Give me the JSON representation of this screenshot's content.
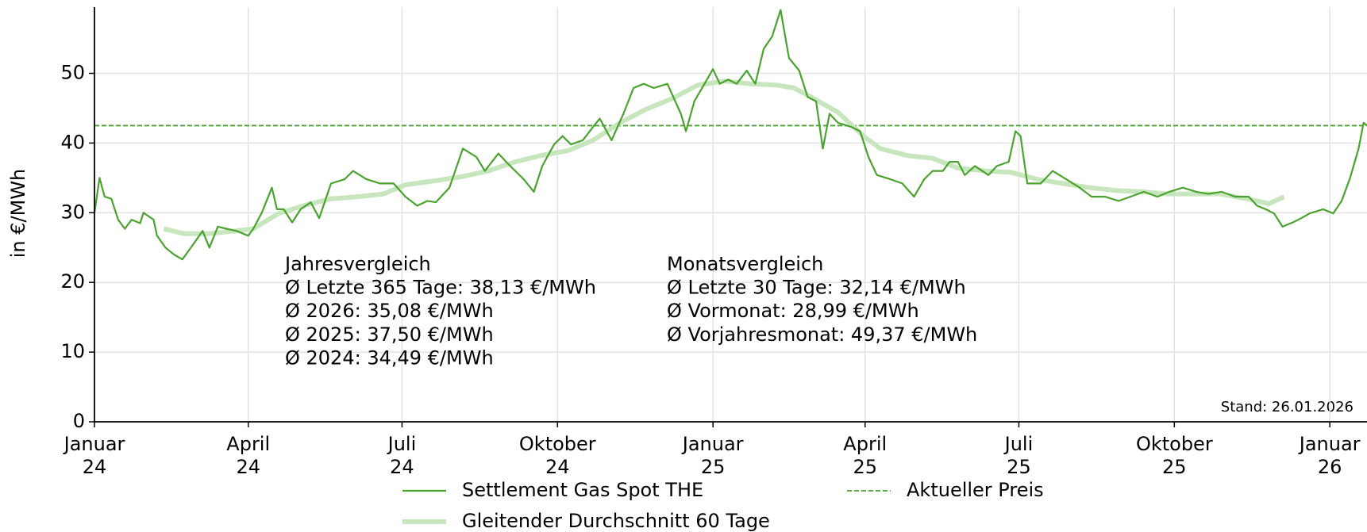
{
  "chart_data": {
    "type": "line",
    "y_label": "in €/MWh",
    "xlim": [
      "2024-01-01",
      "2026-01-23"
    ],
    "xticks": [
      {
        "value": "2024-01-01",
        "label": "Januar\n24"
      },
      {
        "value": "2024-04-01",
        "label": "April\n24"
      },
      {
        "value": "2024-07-01",
        "label": "Juli\n24"
      },
      {
        "value": "2024-10-01",
        "label": "Oktober\n24"
      },
      {
        "value": "2025-01-01",
        "label": "Januar\n25"
      },
      {
        "value": "2025-04-01",
        "label": "April\n25"
      },
      {
        "value": "2025-07-01",
        "label": "Juli\n25"
      },
      {
        "value": "2025-10-01",
        "label": "Oktober\n25"
      },
      {
        "value": "2026-01-01",
        "label": "Januar\n26"
      }
    ],
    "ylim": [
      0,
      59.5
    ],
    "yticks": [
      0,
      10,
      20,
      30,
      40,
      50
    ],
    "grid": true,
    "series": [
      {
        "name": "Settlement Gas Spot THE",
        "color": "#4ba32f",
        "x": [
          "2024-01-01",
          "2024-01-04",
          "2024-01-07",
          "2024-01-11",
          "2024-01-15",
          "2024-01-19",
          "2024-01-23",
          "2024-01-28",
          "2024-01-30",
          "2024-02-05",
          "2024-02-07",
          "2024-02-12",
          "2024-02-17",
          "2024-02-22",
          "2024-02-25",
          "2024-03-01",
          "2024-03-05",
          "2024-03-09",
          "2024-03-14",
          "2024-03-19",
          "2024-03-25",
          "2024-04-01",
          "2024-04-04",
          "2024-04-09",
          "2024-04-15",
          "2024-04-18",
          "2024-04-22",
          "2024-04-27",
          "2024-05-02",
          "2024-05-08",
          "2024-05-13",
          "2024-05-20",
          "2024-05-28",
          "2024-06-02",
          "2024-06-10",
          "2024-06-18",
          "2024-06-26",
          "2024-07-03",
          "2024-07-10",
          "2024-07-16",
          "2024-07-21",
          "2024-07-29",
          "2024-08-06",
          "2024-08-14",
          "2024-08-19",
          "2024-08-27",
          "2024-09-01",
          "2024-09-06",
          "2024-09-11",
          "2024-09-17",
          "2024-09-22",
          "2024-09-29",
          "2024-10-04",
          "2024-10-09",
          "2024-10-16",
          "2024-10-22",
          "2024-10-26",
          "2024-11-02",
          "2024-11-09",
          "2024-11-15",
          "2024-11-21",
          "2024-11-27",
          "2024-12-05",
          "2024-12-13",
          "2024-12-16",
          "2024-12-21",
          "2024-12-27",
          "2025-01-01",
          "2025-01-05",
          "2025-01-10",
          "2025-01-15",
          "2025-01-21",
          "2025-01-26",
          "2025-01-31",
          "2025-02-05",
          "2025-02-10",
          "2025-02-15",
          "2025-02-21",
          "2025-02-26",
          "2025-03-03",
          "2025-03-07",
          "2025-03-11",
          "2025-03-16",
          "2025-03-24",
          "2025-03-29",
          "2025-04-03",
          "2025-04-08",
          "2025-04-16",
          "2025-04-23",
          "2025-04-30",
          "2025-05-06",
          "2025-05-11",
          "2025-05-17",
          "2025-05-21",
          "2025-05-26",
          "2025-05-30",
          "2025-06-05",
          "2025-06-13",
          "2025-06-18",
          "2025-06-25",
          "2025-06-29",
          "2025-07-02",
          "2025-07-06",
          "2025-07-14",
          "2025-07-21",
          "2025-07-29",
          "2025-08-06",
          "2025-08-13",
          "2025-08-21",
          "2025-08-29",
          "2025-09-05",
          "2025-09-13",
          "2025-09-21",
          "2025-09-28",
          "2025-10-06",
          "2025-10-14",
          "2025-10-21",
          "2025-10-29",
          "2025-11-06",
          "2025-11-14",
          "2025-11-19",
          "2025-11-24",
          "2025-11-29",
          "2025-12-04",
          "2025-12-10",
          "2025-12-15",
          "2025-12-20",
          "2025-12-28",
          "2026-01-03",
          "2026-01-08",
          "2026-01-13",
          "2026-01-18",
          "2026-01-21",
          "2026-01-23"
        ],
        "values": [
          30,
          35,
          32.3,
          32,
          29,
          27.7,
          29,
          28.5,
          30,
          29,
          26.7,
          25,
          24,
          23.3,
          24.3,
          26,
          27.4,
          25,
          28,
          27.7,
          27.4,
          26.7,
          27.7,
          30,
          33.6,
          30.5,
          30.5,
          28.6,
          30.5,
          31.5,
          29.2,
          34.2,
          34.8,
          36,
          34.8,
          34.2,
          34.2,
          32.3,
          31,
          31.7,
          31.5,
          33.6,
          39.2,
          38,
          36,
          38.5,
          37.2,
          36,
          34.8,
          33,
          36.7,
          39.8,
          41,
          39.8,
          40.4,
          42.3,
          43.5,
          40.4,
          44.2,
          47.9,
          48.5,
          47.9,
          48.5,
          44.2,
          41.7,
          46,
          48.5,
          50.6,
          48.5,
          49.1,
          48.5,
          50.4,
          48.5,
          53.5,
          55.3,
          59.1,
          52.2,
          50.4,
          46.6,
          46,
          39.2,
          44.2,
          42.9,
          42.3,
          41.7,
          38,
          35.4,
          34.8,
          34.2,
          32.3,
          34.8,
          36,
          36,
          37.3,
          37.3,
          35.4,
          36.7,
          35.4,
          36.7,
          37.3,
          41.7,
          41,
          34.2,
          34.2,
          36,
          34.8,
          33.6,
          32.3,
          32.3,
          31.7,
          32.3,
          33,
          32.3,
          33,
          33.6,
          33,
          32.7,
          33,
          32.3,
          32.3,
          31,
          30.5,
          29.9,
          28,
          28.6,
          29.2,
          29.9,
          30.5,
          29.9,
          31.7,
          35,
          39.2,
          42.9,
          42.5
        ]
      },
      {
        "name": "Gleitender Durchschnitt 60 Tage",
        "color": "#c8e6be",
        "x": [
          "2024-02-11",
          "2024-02-23",
          "2024-03-09",
          "2024-03-25",
          "2024-04-04",
          "2024-04-19",
          "2024-05-05",
          "2024-05-20",
          "2024-06-05",
          "2024-06-20",
          "2024-07-03",
          "2024-07-21",
          "2024-08-06",
          "2024-08-21",
          "2024-09-06",
          "2024-09-21",
          "2024-10-07",
          "2024-10-22",
          "2024-11-07",
          "2024-11-22",
          "2024-12-08",
          "2024-12-23",
          "2025-01-08",
          "2025-01-23",
          "2025-02-08",
          "2025-02-18",
          "2025-02-28",
          "2025-03-16",
          "2025-03-31",
          "2025-04-10",
          "2025-04-26",
          "2025-05-11",
          "2025-05-26",
          "2025-06-11",
          "2025-06-26",
          "2025-07-12",
          "2025-07-27",
          "2025-08-12",
          "2025-08-27",
          "2025-09-12",
          "2025-09-27",
          "2025-10-13",
          "2025-10-28",
          "2025-11-13",
          "2025-11-26",
          "2025-12-05"
        ],
        "values": [
          27.7,
          27,
          27,
          27.4,
          27.7,
          29.9,
          31.1,
          32,
          32.3,
          32.7,
          34,
          34.6,
          35.2,
          36,
          37.3,
          38.2,
          38.9,
          40.4,
          42.9,
          44.8,
          46.4,
          48.3,
          48.9,
          48.5,
          48.3,
          47.9,
          46.6,
          44.4,
          41,
          39.2,
          38.2,
          37.8,
          36.4,
          36,
          35.8,
          34.8,
          34.2,
          33.6,
          33.2,
          33,
          32.7,
          32.7,
          32.7,
          32,
          31.3,
          32.3
        ]
      }
    ],
    "reference_line": {
      "name": "Aktueller Preis",
      "value": 42.5,
      "color": "#4ba32f",
      "style": "dashed"
    },
    "annotations": [
      {
        "lines": [
          "Jahresvergleich",
          "Ø Letzte 365 Tage: 38,13 €/MWh",
          "Ø 2026: 35,08 €/MWh",
          "Ø 2025: 37,50 €/MWh",
          "Ø 2024: 34,49 €/MWh"
        ],
        "color": "#4ba32f"
      },
      {
        "lines": [
          "Monatsvergleich",
          "Ø Letzte 30 Tage: 32,14 €/MWh",
          "Ø Vormonat: 28,99 €/MWh",
          "Ø Vorjahresmonat: 49,37 €/MWh"
        ],
        "color": "#4ba32f"
      }
    ],
    "note": "Stand: 26.01.2026"
  }
}
